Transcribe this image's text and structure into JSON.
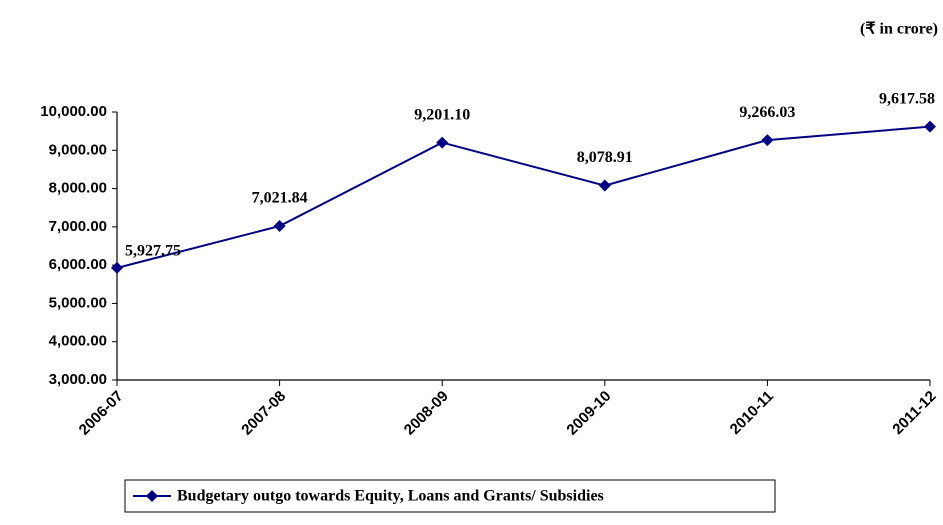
{
  "chart_data": {
    "type": "line",
    "unit_note": "(₹ in crore)",
    "categories": [
      "2006-07",
      "2007-08",
      "2008-09",
      "2009-10",
      "2010-11",
      "2011-12"
    ],
    "series": [
      {
        "name": "Budgetary outgo towards Equity, Loans and Grants/ Subsidies",
        "color": "#000080",
        "values": [
          5927.75,
          7021.84,
          9201.1,
          8078.91,
          9266.03,
          9617.58
        ],
        "value_labels": [
          "5,927.75",
          "7,021.84",
          "9,201.10",
          "8,078.91",
          "9,266.03",
          "9,617.58"
        ]
      }
    ],
    "ylim": [
      3000,
      10000
    ],
    "yticks": [
      {
        "value": 3000,
        "label": "3,000.00"
      },
      {
        "value": 4000,
        "label": "4,000.00"
      },
      {
        "value": 5000,
        "label": "5,000.00"
      },
      {
        "value": 6000,
        "label": "6,000.00"
      },
      {
        "value": 7000,
        "label": "7,000.00"
      },
      {
        "value": 8000,
        "label": "8,000.00"
      },
      {
        "value": 9000,
        "label": "9,000.00"
      },
      {
        "value": 10000,
        "label": "10,000.00"
      }
    ],
    "grid": false,
    "legend": "bottom"
  }
}
